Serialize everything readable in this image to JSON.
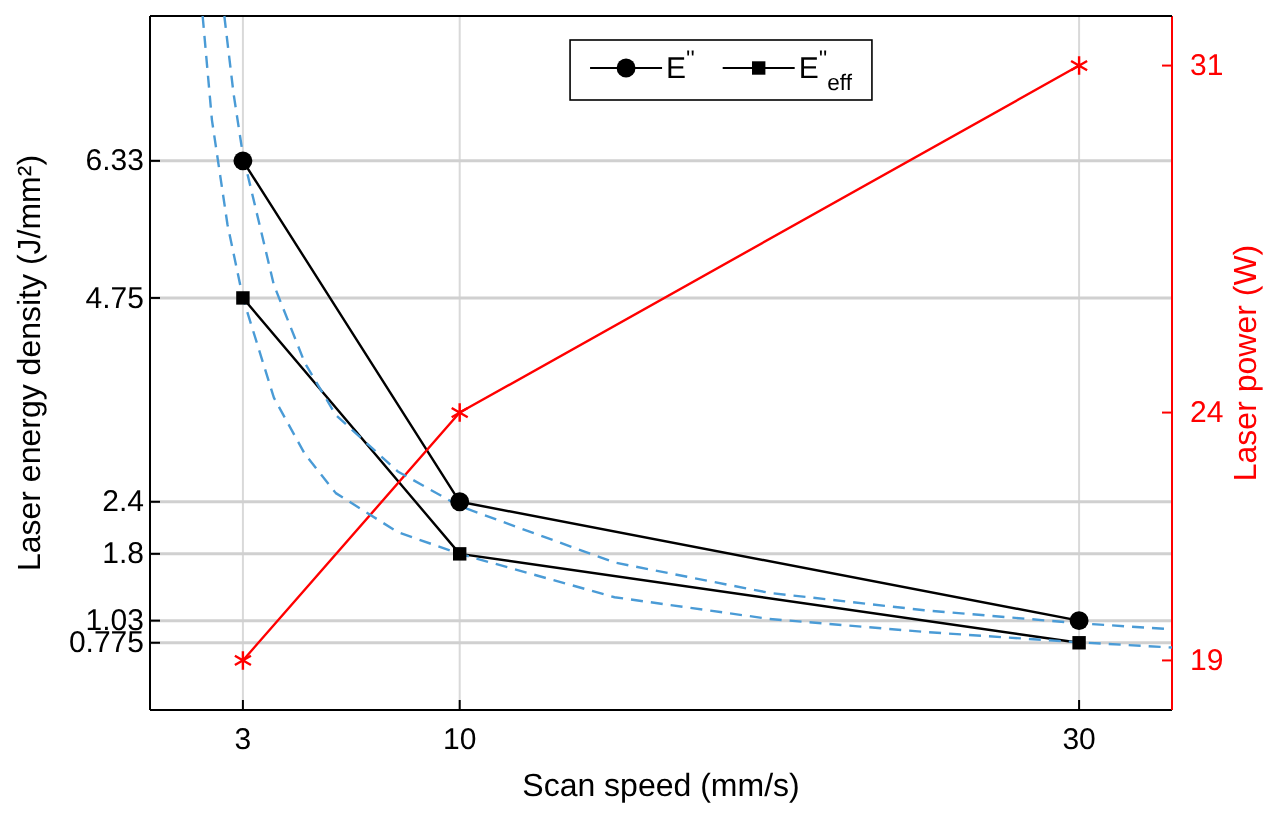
{
  "chart_data": {
    "type": "line",
    "xlabel": "Scan speed (mm/s)",
    "ylabel": "Laser energy density (J/mm²)",
    "y2label": "Laser power (W)",
    "x": [
      3,
      10,
      30
    ],
    "xlim": [
      0,
      33
    ],
    "xticks": [
      3,
      10,
      30
    ],
    "ylim": [
      0,
      8
    ],
    "yticks": [
      0.775,
      1.03,
      1.8,
      2.4,
      4.75,
      6.33
    ],
    "y2lim": [
      18,
      32
    ],
    "y2ticks": [
      19,
      24,
      31
    ],
    "grid": true,
    "legend": "top",
    "line_style": "solid",
    "series": [
      {
        "name": "E$^{''}$",
        "color": "#000000",
        "marker": "circle",
        "values": [
          6.33,
          2.4,
          1.03
        ]
      },
      {
        "name": "E$^{''}$$_{eff}$",
        "color": "#000000",
        "marker": "square",
        "values": [
          4.75,
          1.8,
          0.775
        ]
      },
      {
        "color": "#ff0000",
        "marker": "cross",
        "axis": "y2",
        "values": [
          19,
          24,
          31
        ]
      },
      {
        "color": "#4a9bd6",
        "marker": "none",
        "line_style": "dashed",
        "x": [
          2.4,
          2.7,
          3,
          4,
          5,
          6,
          8,
          10,
          15,
          20,
          25,
          30,
          33
        ],
        "values": [
          8,
          7.1,
          6.4,
          4.9,
          4.0,
          3.4,
          2.75,
          2.35,
          1.7,
          1.35,
          1.15,
          1.0,
          0.93
        ]
      },
      {
        "color": "#4a9bd6",
        "marker": "none",
        "line_style": "dashed",
        "x": [
          1.7,
          2,
          2.5,
          3,
          4,
          5,
          6,
          8,
          10,
          15,
          20,
          25,
          30,
          33
        ],
        "values": [
          8,
          6.8,
          5.6,
          4.75,
          3.6,
          2.95,
          2.5,
          2.05,
          1.8,
          1.3,
          1.05,
          0.9,
          0.78,
          0.72
        ]
      }
    ]
  }
}
